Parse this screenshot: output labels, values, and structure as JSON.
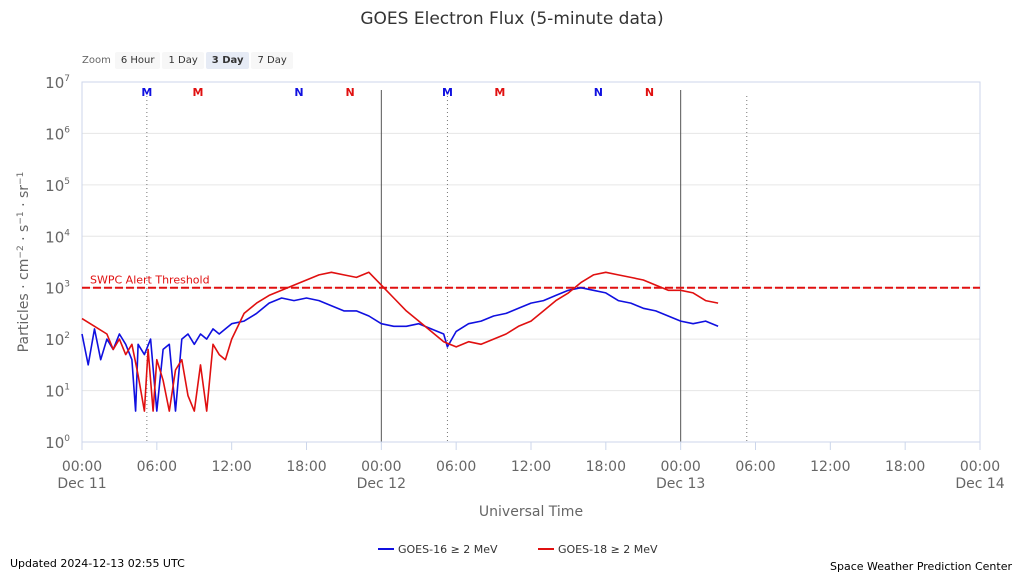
{
  "chart_data": {
    "type": "line",
    "title": "GOES Electron Flux (5-minute data)",
    "xlabel": "Universal Time",
    "ylabel_parts": [
      "Particles · cm",
      "−2",
      " · s",
      "−1",
      " · sr",
      "−1"
    ],
    "y_scale": "log",
    "ylim_exp": [
      0,
      7
    ],
    "y_tick_exponents": [
      0,
      1,
      2,
      3,
      4,
      5,
      6,
      7
    ],
    "y_tick_base": "10",
    "xlim_hours": [
      0,
      72
    ],
    "x_ticks": [
      {
        "h": 0,
        "time": "00:00",
        "date": "Dec 11"
      },
      {
        "h": 6,
        "time": "06:00",
        "date": ""
      },
      {
        "h": 12,
        "time": "12:00",
        "date": ""
      },
      {
        "h": 18,
        "time": "18:00",
        "date": ""
      },
      {
        "h": 24,
        "time": "00:00",
        "date": "Dec 12"
      },
      {
        "h": 30,
        "time": "06:00",
        "date": ""
      },
      {
        "h": 36,
        "time": "12:00",
        "date": ""
      },
      {
        "h": 42,
        "time": "18:00",
        "date": ""
      },
      {
        "h": 48,
        "time": "00:00",
        "date": "Dec 13"
      },
      {
        "h": 54,
        "time": "06:00",
        "date": ""
      },
      {
        "h": 60,
        "time": "12:00",
        "date": ""
      },
      {
        "h": 66,
        "time": "18:00",
        "date": ""
      },
      {
        "h": 72,
        "time": "00:00",
        "date": "Dec 14"
      }
    ],
    "day_lines_hours": [
      24,
      48
    ],
    "dotted_lines_hours": [
      5.2,
      29.3,
      53.3
    ],
    "threshold": {
      "label": "SWPC Alert Threshold",
      "exp": 3.0
    },
    "markers": [
      {
        "h": 5.2,
        "label": "M",
        "series": "goes16"
      },
      {
        "h": 9.3,
        "label": "M",
        "series": "goes18"
      },
      {
        "h": 17.4,
        "label": "N",
        "series": "goes16"
      },
      {
        "h": 21.5,
        "label": "N",
        "series": "goes18"
      },
      {
        "h": 29.3,
        "label": "M",
        "series": "goes16"
      },
      {
        "h": 33.5,
        "label": "M",
        "series": "goes18"
      },
      {
        "h": 41.4,
        "label": "N",
        "series": "goes16"
      },
      {
        "h": 45.5,
        "label": "N",
        "series": "goes18"
      }
    ],
    "series": [
      {
        "name": "GOES-16 ≥ 2 MeV",
        "key": "goes16",
        "color": "#1010e0",
        "x_hours": [
          0,
          0.5,
          1,
          1.5,
          2,
          2.5,
          3,
          3.5,
          4,
          4.3,
          4.5,
          5,
          5.5,
          6,
          6.5,
          7,
          7.5,
          8,
          8.5,
          9,
          9.5,
          10,
          10.5,
          11,
          11.5,
          12,
          13,
          14,
          15,
          16,
          17,
          18,
          19,
          20,
          21,
          22,
          23,
          24,
          25,
          26,
          27,
          28,
          29,
          29.3,
          30,
          31,
          32,
          33,
          34,
          35,
          36,
          37,
          38,
          39,
          40,
          41,
          42,
          43,
          44,
          45,
          46,
          47,
          48,
          49,
          50,
          51
        ],
        "values_exp": [
          2.1,
          1.5,
          2.2,
          1.6,
          2.0,
          1.8,
          2.1,
          1.9,
          1.6,
          0.6,
          1.9,
          1.7,
          2.0,
          0.6,
          1.8,
          1.9,
          0.6,
          2.0,
          2.1,
          1.9,
          2.1,
          2.0,
          2.2,
          2.1,
          2.2,
          2.3,
          2.35,
          2.5,
          2.7,
          2.8,
          2.75,
          2.8,
          2.75,
          2.65,
          2.55,
          2.55,
          2.45,
          2.3,
          2.25,
          2.25,
          2.3,
          2.2,
          2.1,
          1.85,
          2.15,
          2.3,
          2.35,
          2.45,
          2.5,
          2.6,
          2.7,
          2.75,
          2.85,
          2.95,
          3.0,
          2.95,
          2.9,
          2.75,
          2.7,
          2.6,
          2.55,
          2.45,
          2.35,
          2.3,
          2.35,
          2.25
        ]
      },
      {
        "name": "GOES-18 ≥ 2 MeV",
        "key": "goes18",
        "color": "#e01010",
        "x_hours": [
          0,
          1,
          2,
          2.5,
          3,
          3.5,
          4,
          4.5,
          5,
          5.3,
          5.7,
          6,
          6.5,
          7,
          7.5,
          8,
          8.5,
          9,
          9.5,
          10,
          10.5,
          11,
          11.5,
          12,
          13,
          14,
          15,
          16,
          17,
          18,
          19,
          20,
          21,
          22,
          23,
          24,
          25,
          26,
          27,
          28,
          29,
          30,
          31,
          32,
          33,
          34,
          35,
          36,
          37,
          38,
          39,
          40,
          41,
          42,
          43,
          44,
          45,
          46,
          47,
          48,
          49,
          50,
          51
        ],
        "values_exp": [
          2.4,
          2.25,
          2.1,
          1.8,
          2.0,
          1.7,
          1.9,
          1.3,
          0.6,
          1.8,
          0.6,
          1.6,
          1.2,
          0.6,
          1.4,
          1.6,
          0.9,
          0.6,
          1.5,
          0.6,
          1.9,
          1.7,
          1.6,
          2.0,
          2.5,
          2.7,
          2.85,
          2.95,
          3.05,
          3.15,
          3.25,
          3.3,
          3.25,
          3.2,
          3.3,
          3.05,
          2.8,
          2.55,
          2.35,
          2.15,
          1.95,
          1.85,
          1.95,
          1.9,
          2.0,
          2.1,
          2.25,
          2.35,
          2.55,
          2.75,
          2.9,
          3.1,
          3.25,
          3.3,
          3.25,
          3.2,
          3.15,
          3.05,
          2.95,
          2.95,
          2.9,
          2.75,
          2.7
        ]
      }
    ]
  },
  "zoom": {
    "label": "Zoom",
    "buttons": [
      {
        "label": "6 Hour",
        "active": false
      },
      {
        "label": "1 Day",
        "active": false
      },
      {
        "label": "3 Day",
        "active": true
      },
      {
        "label": "7 Day",
        "active": false
      }
    ]
  },
  "footer": {
    "updated": "Updated 2024-12-13 02:55 UTC",
    "credit": "Space Weather Prediction Center"
  }
}
